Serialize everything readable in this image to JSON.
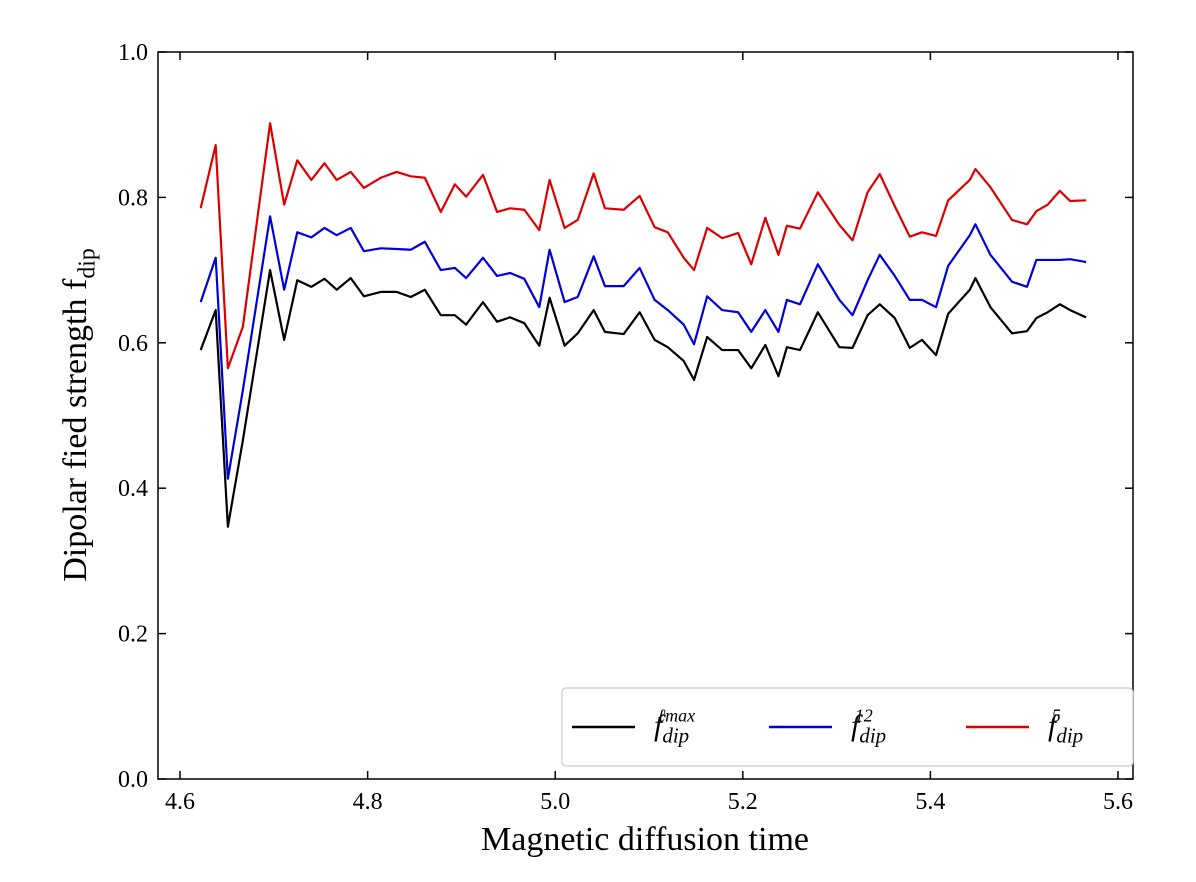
{
  "chart_data": {
    "type": "line",
    "xlabel": "Magnetic diffusion time",
    "ylabel": "Dipolar fied strength f_dip",
    "x": [
      4.622,
      4.638,
      4.651,
      4.667,
      4.696,
      4.711,
      4.725,
      4.74,
      4.754,
      4.767,
      4.782,
      4.796,
      4.814,
      4.831,
      4.846,
      4.861,
      4.878,
      4.893,
      4.905,
      4.923,
      4.938,
      4.952,
      4.967,
      4.983,
      4.994,
      5.01,
      5.024,
      5.041,
      5.053,
      5.073,
      5.09,
      5.106,
      5.12,
      5.137,
      5.148,
      5.162,
      5.178,
      5.195,
      5.209,
      5.224,
      5.238,
      5.247,
      5.261,
      5.28,
      5.303,
      5.317,
      5.333,
      5.346,
      5.362,
      5.378,
      5.391,
      5.406,
      5.419,
      5.442,
      5.448,
      5.464,
      5.487,
      5.503,
      5.513,
      5.525,
      5.538,
      5.549,
      5.566
    ],
    "series": [
      {
        "name": "f_dip^ℓmax",
        "color": "#000000",
        "values": [
          0.59,
          0.645,
          0.347,
          0.466,
          0.7,
          0.604,
          0.686,
          0.677,
          0.688,
          0.673,
          0.689,
          0.664,
          0.67,
          0.67,
          0.663,
          0.673,
          0.638,
          0.638,
          0.625,
          0.656,
          0.629,
          0.635,
          0.627,
          0.596,
          0.662,
          0.596,
          0.613,
          0.645,
          0.615,
          0.612,
          0.642,
          0.604,
          0.594,
          0.575,
          0.549,
          0.608,
          0.59,
          0.59,
          0.565,
          0.597,
          0.554,
          0.594,
          0.59,
          0.642,
          0.594,
          0.593,
          0.638,
          0.653,
          0.634,
          0.593,
          0.604,
          0.583,
          0.64,
          0.673,
          0.689,
          0.649,
          0.613,
          0.616,
          0.634,
          0.642,
          0.653,
          0.645,
          0.635
        ]
      },
      {
        "name": "f_dip^12",
        "color": "#0000dd",
        "values": [
          0.656,
          0.717,
          0.413,
          0.535,
          0.774,
          0.673,
          0.752,
          0.745,
          0.758,
          0.748,
          0.758,
          0.726,
          0.73,
          0.729,
          0.728,
          0.739,
          0.7,
          0.703,
          0.689,
          0.717,
          0.692,
          0.696,
          0.688,
          0.649,
          0.728,
          0.656,
          0.663,
          0.719,
          0.678,
          0.678,
          0.703,
          0.659,
          0.645,
          0.625,
          0.598,
          0.664,
          0.645,
          0.642,
          0.615,
          0.645,
          0.615,
          0.659,
          0.653,
          0.708,
          0.659,
          0.638,
          0.686,
          0.721,
          0.692,
          0.659,
          0.659,
          0.649,
          0.706,
          0.748,
          0.763,
          0.721,
          0.684,
          0.677,
          0.714,
          0.714,
          0.714,
          0.715,
          0.711
        ]
      },
      {
        "name": "f_dip^5",
        "color": "#dd0000",
        "values": [
          0.785,
          0.872,
          0.565,
          0.622,
          0.902,
          0.79,
          0.851,
          0.824,
          0.847,
          0.824,
          0.835,
          0.813,
          0.827,
          0.835,
          0.829,
          0.827,
          0.78,
          0.818,
          0.801,
          0.831,
          0.78,
          0.785,
          0.783,
          0.755,
          0.824,
          0.758,
          0.769,
          0.833,
          0.785,
          0.783,
          0.802,
          0.759,
          0.752,
          0.717,
          0.7,
          0.758,
          0.744,
          0.751,
          0.708,
          0.772,
          0.721,
          0.761,
          0.757,
          0.807,
          0.762,
          0.741,
          0.807,
          0.832,
          0.788,
          0.746,
          0.752,
          0.747,
          0.796,
          0.824,
          0.839,
          0.814,
          0.769,
          0.763,
          0.781,
          0.79,
          0.809,
          0.795,
          0.796
        ]
      }
    ],
    "xlim": [
      4.5765,
      5.616
    ],
    "ylim": [
      0,
      1
    ],
    "xticks": [
      4.6,
      4.8,
      {
        "value": 5,
        "label": "5.0"
      },
      5.2,
      5.4,
      5.6
    ],
    "yticks": [
      {
        "value": 0,
        "label": "0.0"
      },
      0.2,
      0.4,
      0.6,
      0.8,
      {
        "value": 1,
        "label": "1.0"
      }
    ],
    "legend": "lower right"
  }
}
